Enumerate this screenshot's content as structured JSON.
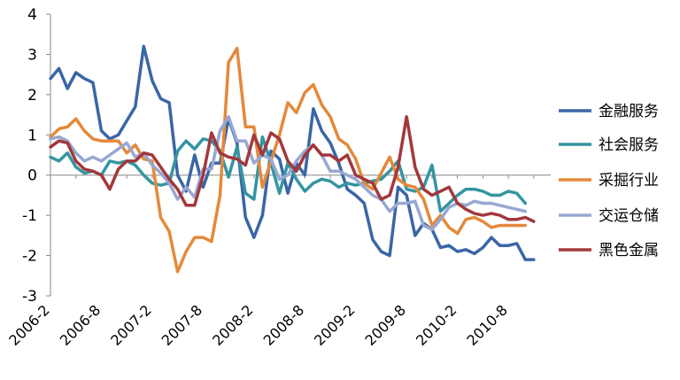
{
  "chart_data": {
    "type": "line",
    "title": "",
    "xlabel": "",
    "ylabel": "",
    "ylim": [
      -3,
      4
    ],
    "yticks": [
      4,
      3,
      2,
      1,
      0,
      -1,
      -2,
      -3
    ],
    "ytick_labels": [
      "4",
      "3",
      "2",
      "1",
      "0",
      "-1",
      "-2",
      "-3"
    ],
    "xtick_labels": [
      "2006-2",
      "2006-8",
      "2007-2",
      "2007-8",
      "2008-2",
      "2008-8",
      "2009-2",
      "2009-8",
      "2010-2",
      "2010-8"
    ],
    "xtick_months": [
      "2006-02",
      "2006-08",
      "2007-02",
      "2007-08",
      "2008-02",
      "2008-08",
      "2009-02",
      "2009-08",
      "2010-02",
      "2010-08"
    ],
    "x_start": "2006-02",
    "x_end": "2011-01",
    "grid": false,
    "legend": "right",
    "series": [
      {
        "name": "金融服务",
        "color": "#3a66a6",
        "values": [
          2.4,
          2.65,
          2.15,
          2.55,
          2.4,
          2.3,
          1.1,
          0.9,
          1.0,
          1.35,
          1.7,
          3.2,
          2.35,
          1.9,
          1.8,
          0.0,
          -0.4,
          0.5,
          -0.3,
          0.3,
          0.3,
          1.4,
          0.8,
          -1.05,
          -1.55,
          -1.0,
          0.6,
          0.4,
          -0.45,
          0.3,
          0.0,
          1.65,
          1.1,
          0.8,
          0.3,
          -0.35,
          -0.5,
          -0.7,
          -1.6,
          -1.9,
          -2.0,
          -0.3,
          -0.5,
          -1.5,
          -1.2,
          -1.35,
          -1.8,
          -1.75,
          -1.9,
          -1.85,
          -1.95,
          -1.8,
          -1.55,
          -1.75,
          -1.75,
          -1.7,
          -2.1,
          -2.1
        ]
      },
      {
        "name": "社会服务",
        "color": "#3495a2",
        "values": [
          0.45,
          0.35,
          0.55,
          0.2,
          0.05,
          0.1,
          0.0,
          0.35,
          0.3,
          0.35,
          0.25,
          0.0,
          -0.2,
          -0.25,
          -0.2,
          0.6,
          0.85,
          0.65,
          0.9,
          0.85,
          0.6,
          -0.05,
          0.7,
          -0.45,
          -0.6,
          0.95,
          0.3,
          -0.45,
          0.3,
          -0.1,
          -0.4,
          -0.2,
          -0.1,
          -0.15,
          -0.3,
          -0.2,
          -0.25,
          -0.2,
          -0.15,
          -0.1,
          0.1,
          0.35,
          -0.35,
          -0.4,
          -0.3,
          0.25,
          -0.9,
          -0.7,
          -0.5,
          -0.35,
          -0.35,
          -0.4,
          -0.5,
          -0.5,
          -0.4,
          -0.45,
          -0.7
        ]
      },
      {
        "name": "采掘行业",
        "color": "#e4893b",
        "values": [
          0.95,
          1.15,
          1.2,
          1.4,
          1.1,
          0.9,
          0.85,
          0.85,
          0.85,
          0.55,
          0.75,
          0.4,
          0.35,
          -1.05,
          -1.4,
          -2.4,
          -1.9,
          -1.55,
          -1.55,
          -1.65,
          -0.5,
          2.8,
          3.15,
          1.2,
          1.2,
          -0.3,
          0.35,
          1.0,
          1.8,
          1.55,
          2.05,
          2.25,
          1.75,
          1.45,
          0.9,
          0.75,
          0.4,
          -0.2,
          -0.35,
          0.05,
          0.45,
          -0.1,
          -0.25,
          -0.3,
          -0.6,
          -1.25,
          -1.0,
          -1.3,
          -1.45,
          -1.1,
          -1.05,
          -1.15,
          -1.3,
          -1.25,
          -1.25,
          -1.25,
          -1.25
        ]
      },
      {
        "name": "交运仓储",
        "color": "#98a8d2",
        "values": [
          0.9,
          0.95,
          0.85,
          0.55,
          0.35,
          0.45,
          0.35,
          0.5,
          0.65,
          0.8,
          0.45,
          0.55,
          0.25,
          0.05,
          -0.2,
          -0.6,
          -0.3,
          -0.55,
          0.15,
          0.15,
          1.1,
          1.45,
          0.85,
          0.85,
          0.3,
          0.5,
          0.4,
          -0.1,
          0.0,
          0.35,
          0.6,
          0.75,
          0.5,
          0.1,
          0.1,
          0.0,
          -0.1,
          -0.3,
          -0.5,
          -0.6,
          -0.9,
          -0.7,
          -0.7,
          -0.65,
          -1.25,
          -1.35,
          -1.1,
          -0.8,
          -0.7,
          -0.75,
          -0.65,
          -0.7,
          -0.7,
          -0.75,
          -0.8,
          -0.85,
          -0.9
        ]
      },
      {
        "name": "黑色金属",
        "color": "#a2383c",
        "values": [
          0.7,
          0.85,
          0.8,
          0.35,
          0.15,
          0.1,
          0.0,
          -0.35,
          0.15,
          0.35,
          0.35,
          0.55,
          0.5,
          0.2,
          -0.1,
          -0.35,
          -0.75,
          -0.75,
          0.0,
          1.05,
          0.55,
          0.45,
          0.4,
          0.25,
          1.0,
          0.5,
          1.05,
          0.9,
          0.35,
          0.1,
          0.5,
          0.75,
          0.5,
          0.5,
          0.35,
          0.5,
          0.0,
          -0.1,
          -0.2,
          -0.6,
          -0.5,
          0.2,
          1.45,
          0.2,
          -0.35,
          -0.5,
          -0.4,
          -0.3,
          -0.7,
          -0.85,
          -0.95,
          -1.0,
          -0.95,
          -1.0,
          -1.1,
          -1.1,
          -1.05,
          -1.15
        ]
      }
    ]
  }
}
